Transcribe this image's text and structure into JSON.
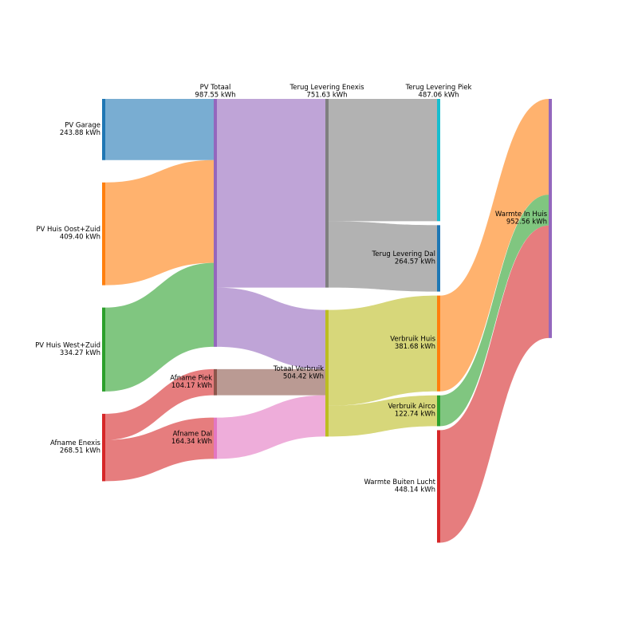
{
  "chart_data": {
    "type": "sankey",
    "unit": "kWh",
    "colors": {
      "blue": "#1f77b4",
      "orange": "#ff7f0e",
      "green": "#2ca02c",
      "red": "#d62728",
      "purple": "#9467bd",
      "brown": "#8c564b",
      "pink": "#e377c2",
      "gray": "#7f7f7f",
      "olive": "#bcbd22",
      "cyan": "#17becf"
    },
    "nodes": [
      {
        "id": "pv_garage",
        "name": "PV Garage",
        "value_label": "243.88 kWh",
        "color": "blue"
      },
      {
        "id": "pv_oost",
        "name": "PV Huis Oost+Zuid",
        "value_label": "409.40 kWh",
        "color": "orange"
      },
      {
        "id": "pv_west",
        "name": "PV Huis West+Zuid",
        "value_label": "334.27 kWh",
        "color": "green"
      },
      {
        "id": "afname_enexis",
        "name": "Afname Enexis",
        "value_label": "268.51 kWh",
        "color": "red"
      },
      {
        "id": "pv_totaal",
        "name": "PV Totaal",
        "value_label": "987.55 kWh",
        "color": "purple"
      },
      {
        "id": "afname_piek",
        "name": "Afname Piek",
        "value_label": "104.17 kWh",
        "color": "brown"
      },
      {
        "id": "afname_dal",
        "name": "Afname Dal",
        "value_label": "164.34 kWh",
        "color": "pink"
      },
      {
        "id": "terug_enexis",
        "name": "Terug Levering Enexis",
        "value_label": "751.63 kWh",
        "color": "gray"
      },
      {
        "id": "totaal_verbruik",
        "name": "Totaal Verbruik",
        "value_label": "504.42 kWh",
        "color": "olive"
      },
      {
        "id": "terug_piek",
        "name": "Terug Levering Piek",
        "value_label": "487.06 kWh",
        "color": "cyan"
      },
      {
        "id": "terug_dal",
        "name": "Terug Levering Dal",
        "value_label": "264.57 kWh",
        "color": "blue"
      },
      {
        "id": "verbruik_huis",
        "name": "Verbruik Huis",
        "value_label": "381.68 kWh",
        "color": "orange"
      },
      {
        "id": "verbruik_airco",
        "name": "Verbruik Airco",
        "value_label": "122.74 kWh",
        "color": "green"
      },
      {
        "id": "warmte_buiten",
        "name": "Warmte Buiten Lucht",
        "value_label": "448.14 kWh",
        "color": "red"
      },
      {
        "id": "warmte_huis",
        "name": "Warmte In Huis",
        "value_label": "952.56 kWh",
        "color": "purple"
      }
    ],
    "links": [
      {
        "source": "pv_garage",
        "target": "pv_totaal",
        "value": 243.88
      },
      {
        "source": "pv_oost",
        "target": "pv_totaal",
        "value": 409.4
      },
      {
        "source": "pv_west",
        "target": "pv_totaal",
        "value": 334.27
      },
      {
        "source": "afname_enexis",
        "target": "afname_piek",
        "value": 104.17
      },
      {
        "source": "afname_enexis",
        "target": "afname_dal",
        "value": 164.34
      },
      {
        "source": "pv_totaal",
        "target": "terug_enexis",
        "value": 751.63
      },
      {
        "source": "pv_totaal",
        "target": "totaal_verbruik",
        "value": 235.92
      },
      {
        "source": "afname_piek",
        "target": "totaal_verbruik",
        "value": 104.17
      },
      {
        "source": "afname_dal",
        "target": "totaal_verbruik",
        "value": 164.34
      },
      {
        "source": "terug_enexis",
        "target": "terug_piek",
        "value": 487.06
      },
      {
        "source": "terug_enexis",
        "target": "terug_dal",
        "value": 264.57
      },
      {
        "source": "totaal_verbruik",
        "target": "verbruik_huis",
        "value": 381.68
      },
      {
        "source": "totaal_verbruik",
        "target": "verbruik_airco",
        "value": 122.74
      },
      {
        "source": "verbruik_huis",
        "target": "warmte_huis",
        "value": 381.68
      },
      {
        "source": "verbruik_airco",
        "target": "warmte_huis",
        "value": 122.74
      },
      {
        "source": "warmte_buiten",
        "target": "warmte_huis",
        "value": 448.14
      }
    ]
  }
}
